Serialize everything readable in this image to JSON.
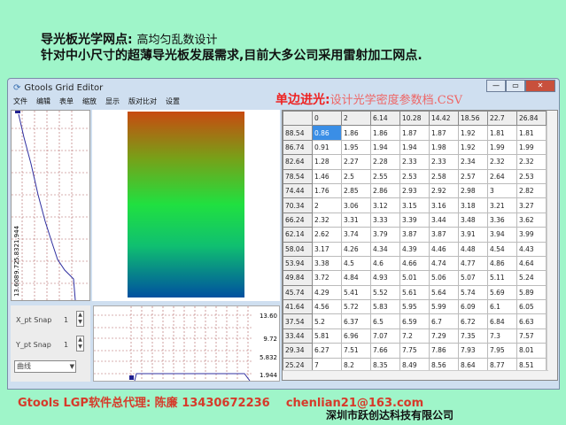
{
  "banner": {
    "title": "导光板光学网点:",
    "subtitle": "高均匀乱数设计",
    "line2": "针对中小尺寸的超薄导光板发展需求,目前大多公司采用雷射加工网点."
  },
  "window": {
    "title": "Gtools Grid Editor",
    "menu": [
      "文件",
      "编辑",
      "表单",
      "缩放",
      "显示",
      "版对比对",
      "设置"
    ],
    "overlay_bold": "单边进光:",
    "overlay_text": "设计光学密度参数档.CSV"
  },
  "left_chart": {
    "labels": [
      "1.944",
      "5.832",
      "9.72",
      "13.608"
    ]
  },
  "bottom_chart": {
    "labels": [
      "13.60",
      "9.72",
      "5.832",
      "1.944"
    ]
  },
  "controls": {
    "x_label": "X_pt Snap",
    "x_value": "1",
    "y_label": "Y_pt Snap",
    "y_value": "1",
    "mode": "曲线"
  },
  "table": {
    "columns": [
      "0",
      "2",
      "6.14",
      "10.28",
      "14.42",
      "18.56",
      "22.7",
      "26.84"
    ],
    "rows": [
      {
        "h": "88.54",
        "v": [
          "0.86",
          "1.86",
          "1.86",
          "1.87",
          "1.87",
          "1.92",
          "1.81",
          "1.81"
        ]
      },
      {
        "h": "86.74",
        "v": [
          "0.91",
          "1.95",
          "1.94",
          "1.94",
          "1.98",
          "1.92",
          "1.99",
          "1.99"
        ]
      },
      {
        "h": "82.64",
        "v": [
          "1.28",
          "2.27",
          "2.28",
          "2.33",
          "2.33",
          "2.34",
          "2.32",
          "2.32"
        ]
      },
      {
        "h": "78.54",
        "v": [
          "1.46",
          "2.5",
          "2.55",
          "2.53",
          "2.58",
          "2.57",
          "2.64",
          "2.53"
        ]
      },
      {
        "h": "74.44",
        "v": [
          "1.76",
          "2.85",
          "2.86",
          "2.93",
          "2.92",
          "2.98",
          "3",
          "2.82"
        ]
      },
      {
        "h": "70.34",
        "v": [
          "2",
          "3.06",
          "3.12",
          "3.15",
          "3.16",
          "3.18",
          "3.21",
          "3.27"
        ]
      },
      {
        "h": "66.24",
        "v": [
          "2.32",
          "3.31",
          "3.33",
          "3.39",
          "3.44",
          "3.48",
          "3.36",
          "3.62"
        ]
      },
      {
        "h": "62.14",
        "v": [
          "2.62",
          "3.74",
          "3.79",
          "3.87",
          "3.87",
          "3.91",
          "3.94",
          "3.99"
        ]
      },
      {
        "h": "58.04",
        "v": [
          "3.17",
          "4.26",
          "4.34",
          "4.39",
          "4.46",
          "4.48",
          "4.54",
          "4.43"
        ]
      },
      {
        "h": "53.94",
        "v": [
          "3.38",
          "4.5",
          "4.6",
          "4.66",
          "4.74",
          "4.77",
          "4.86",
          "4.64"
        ]
      },
      {
        "h": "49.84",
        "v": [
          "3.72",
          "4.84",
          "4.93",
          "5.01",
          "5.06",
          "5.07",
          "5.11",
          "5.24"
        ]
      },
      {
        "h": "45.74",
        "v": [
          "4.29",
          "5.41",
          "5.52",
          "5.61",
          "5.64",
          "5.74",
          "5.69",
          "5.89"
        ]
      },
      {
        "h": "41.64",
        "v": [
          "4.56",
          "5.72",
          "5.83",
          "5.95",
          "5.99",
          "6.09",
          "6.1",
          "6.05"
        ]
      },
      {
        "h": "37.54",
        "v": [
          "5.2",
          "6.37",
          "6.5",
          "6.59",
          "6.7",
          "6.72",
          "6.84",
          "6.63"
        ]
      },
      {
        "h": "33.44",
        "v": [
          "5.81",
          "6.96",
          "7.07",
          "7.2",
          "7.29",
          "7.35",
          "7.3",
          "7.57"
        ]
      },
      {
        "h": "29.34",
        "v": [
          "6.27",
          "7.51",
          "7.66",
          "7.75",
          "7.86",
          "7.93",
          "7.95",
          "8.01"
        ]
      },
      {
        "h": "25.24",
        "v": [
          "7",
          "8.2",
          "8.35",
          "8.49",
          "8.56",
          "8.64",
          "8.77",
          "8.51"
        ]
      }
    ]
  },
  "footer": {
    "agent": "Gtools LGP软件总代理:  陈廉  13430672236",
    "email": "chenlian21@163.com",
    "company": "深圳市跃创达科技有限公司"
  }
}
